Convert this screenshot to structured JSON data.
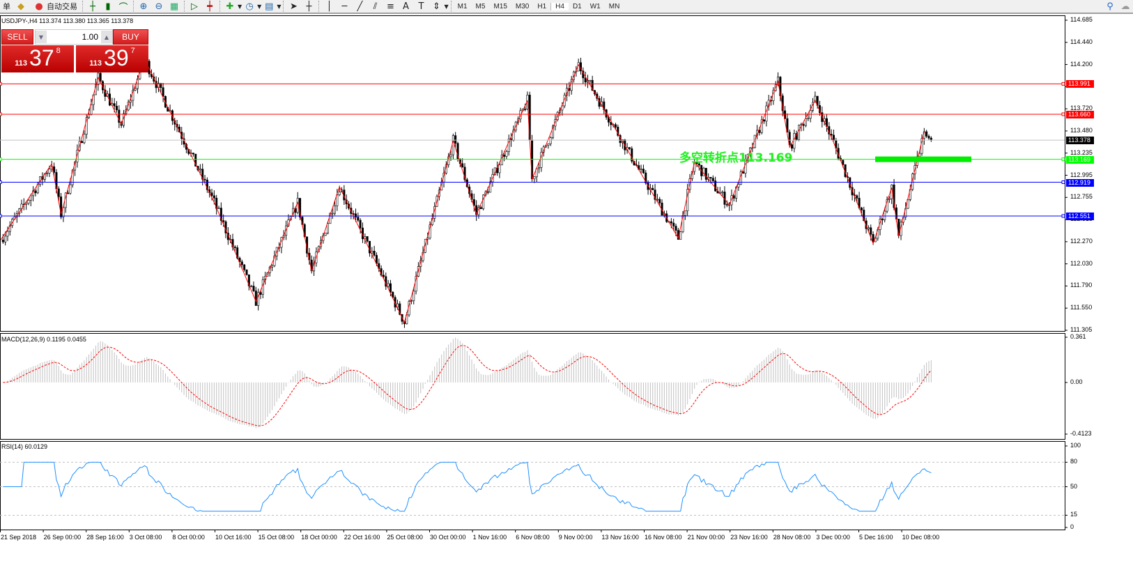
{
  "toolbar": {
    "left_label": "单",
    "autotrade_label": "自动交易",
    "timeframes": [
      "M1",
      "M5",
      "M15",
      "M30",
      "H1",
      "H4",
      "D1",
      "W1",
      "MN"
    ],
    "active_timeframe": "H4"
  },
  "chart": {
    "symbol_header": "USDJPY-,H4  113.374 113.380 113.365 113.378",
    "trade_panel": {
      "sell_label": "SELL",
      "buy_label": "BUY",
      "lot": "1.00",
      "sell_small": "113",
      "sell_big": "37",
      "sell_sup": "8",
      "buy_small": "113",
      "buy_big": "39",
      "buy_sup": "7"
    },
    "annotation": "多空转折点113.169",
    "price_ticks": [
      "114.685",
      "114.440",
      "114.200",
      "113.960",
      "113.720",
      "113.480",
      "113.235",
      "112.995",
      "112.755",
      "112.515",
      "112.270",
      "112.030",
      "111.790",
      "111.550",
      "111.305"
    ],
    "price_range": [
      111.305,
      114.685
    ],
    "levels": [
      {
        "value": "113.991",
        "color": "#ff0000"
      },
      {
        "value": "113.660",
        "color": "#ff0000"
      },
      {
        "value": "113.378",
        "color": "#000000",
        "line": "#c0c0c0"
      },
      {
        "value": "113.169",
        "color": "#00ff00"
      },
      {
        "value": "112.919",
        "color": "#0000ff"
      },
      {
        "value": "112.551",
        "color": "#0000ff"
      }
    ],
    "zigzag_pivots": [
      [
        0,
        112.29
      ],
      [
        22,
        113.12
      ],
      [
        26,
        112.57
      ],
      [
        42,
        114.06
      ],
      [
        52,
        113.55
      ],
      [
        62,
        114.26
      ],
      [
        76,
        113.53
      ],
      [
        92,
        112.7
      ],
      [
        110,
        111.62
      ],
      [
        128,
        112.7
      ],
      [
        134,
        111.95
      ],
      [
        146,
        112.87
      ],
      [
        164,
        111.92
      ],
      [
        174,
        111.39
      ],
      [
        195,
        113.37
      ],
      [
        205,
        112.57
      ],
      [
        227,
        113.81
      ],
      [
        229,
        112.95
      ],
      [
        249,
        114.2
      ],
      [
        274,
        113.1
      ],
      [
        292,
        112.31
      ],
      [
        299,
        113.14
      ],
      [
        314,
        112.67
      ],
      [
        335,
        114.02
      ],
      [
        340,
        113.3
      ],
      [
        351,
        113.81
      ],
      [
        359,
        113.35
      ],
      [
        376,
        112.25
      ],
      [
        384,
        112.86
      ],
      [
        387,
        112.33
      ],
      [
        398,
        113.47
      ]
    ],
    "last_close": 113.378
  },
  "macd": {
    "label": "MACD(12,26,9) 0.1195 0.0455",
    "ticks": [
      "0.361",
      "0.00",
      "-0.4123"
    ],
    "range": [
      -0.4123,
      0.361
    ],
    "hist_color": "#c0c0c0",
    "signal_color": "#ff0000"
  },
  "rsi": {
    "label": "RSI(14) 60.0129",
    "ticks": [
      "100",
      "80",
      "50",
      "15",
      "0"
    ],
    "levels": [
      80,
      50,
      15
    ],
    "line_color": "#1e90ff"
  },
  "time_axis": [
    "21 Sep 2018",
    "26 Sep 00:00",
    "28 Sep 16:00",
    "3 Oct 08:00",
    "8 Oct 00:00",
    "10 Oct 16:00",
    "15 Oct 08:00",
    "18 Oct 00:00",
    "22 Oct 16:00",
    "25 Oct 08:00",
    "30 Oct 00:00",
    "1 Nov 16:00",
    "6 Nov 08:00",
    "9 Nov 00:00",
    "13 Nov 16:00",
    "16 Nov 08:00",
    "21 Nov 00:00",
    "23 Nov 16:00",
    "28 Nov 08:00",
    "3 Dec 00:00",
    "5 Dec 16:00",
    "10 Dec 08:00"
  ]
}
